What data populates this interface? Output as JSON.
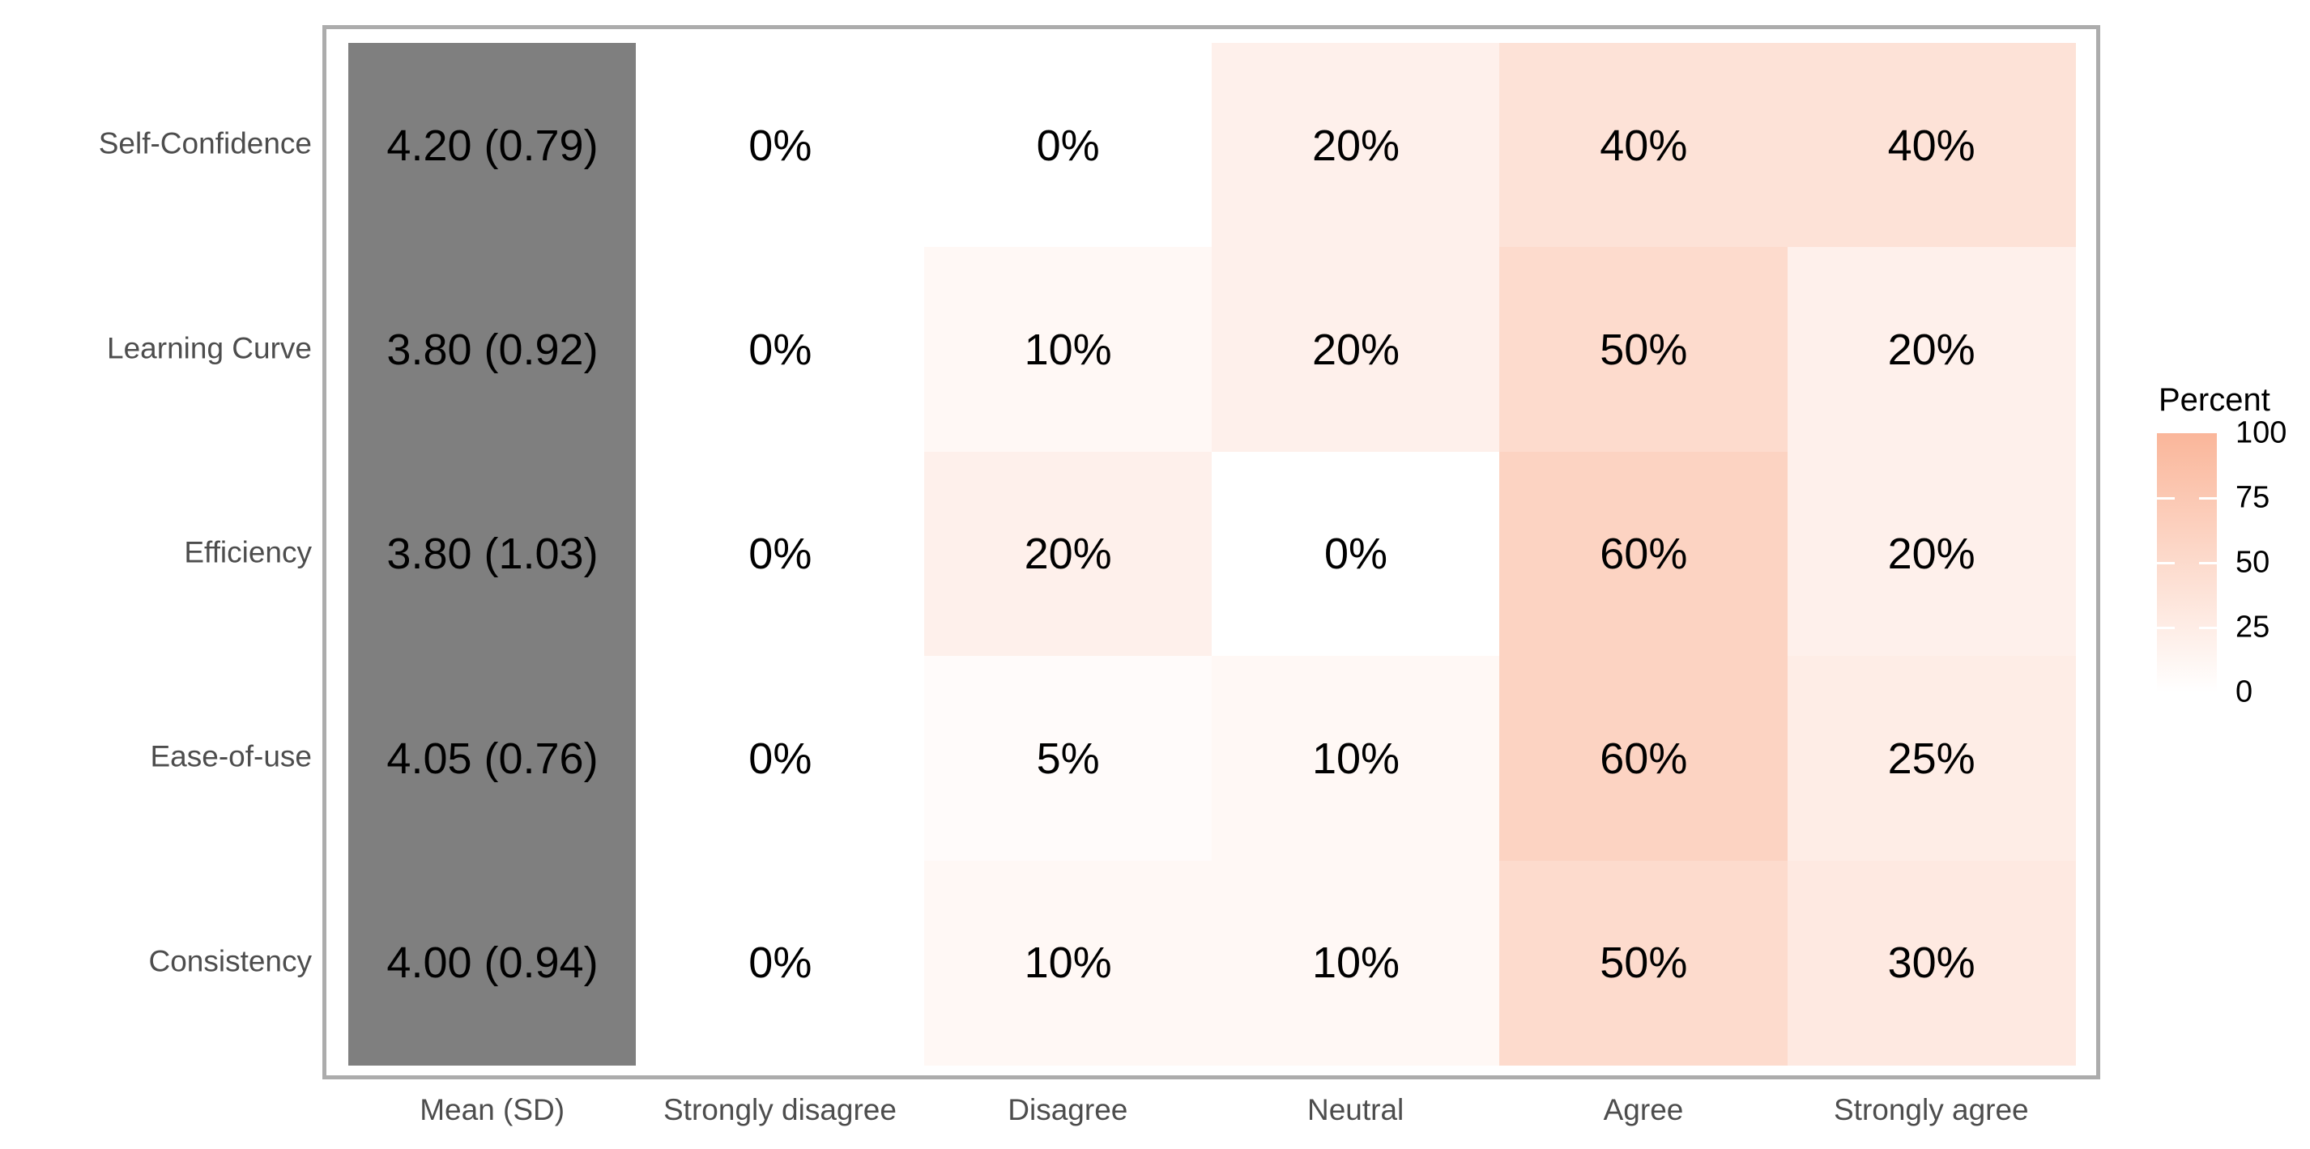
{
  "figure": {
    "background": "#FFFFFF"
  },
  "chart_data": {
    "type": "heatmap",
    "title": "",
    "columns": [
      "Mean (SD)",
      "Strongly disagree",
      "Disagree",
      "Neutral",
      "Agree",
      "Strongly agree"
    ],
    "rows": [
      "Self-Confidence",
      "Learning Curve",
      "Efficiency",
      "Ease-of-use",
      "Consistency"
    ],
    "mean_sd_values": [
      "4.20 (0.79)",
      "3.80 (0.92)",
      "3.80 (1.03)",
      "4.05 (0.76)",
      "4.00 (0.94)"
    ],
    "percent_values": [
      [
        0,
        0,
        20,
        40,
        40
      ],
      [
        0,
        10,
        20,
        50,
        20
      ],
      [
        0,
        20,
        0,
        60,
        20
      ],
      [
        0,
        5,
        10,
        60,
        25
      ],
      [
        0,
        10,
        10,
        50,
        30
      ]
    ],
    "percent_labels": [
      [
        "0%",
        "0%",
        "20%",
        "40%",
        "40%"
      ],
      [
        "0%",
        "10%",
        "20%",
        "50%",
        "20%"
      ],
      [
        "0%",
        "20%",
        "0%",
        "60%",
        "20%"
      ],
      [
        "0%",
        "5%",
        "10%",
        "60%",
        "25%"
      ],
      [
        "0%",
        "10%",
        "10%",
        "50%",
        "30%"
      ]
    ],
    "legend": {
      "title": "Percent",
      "tick_values": [
        100,
        75,
        50,
        25,
        0
      ],
      "tick_labels": [
        "100",
        "75",
        "50",
        "25",
        "0"
      ],
      "min": 0,
      "max": 100,
      "position": "right"
    },
    "colors": {
      "heat_low": "#FFFFFF",
      "heat_high": "#FAB69A",
      "mean_column_fill": "#7F7F7F",
      "panel_border": "#ACACAC",
      "axis_text": "#4D4D4D",
      "cell_text": "#000000",
      "legend_text": "#000000",
      "legend_tick_mark": "#FFFFFF"
    },
    "grid": false
  }
}
